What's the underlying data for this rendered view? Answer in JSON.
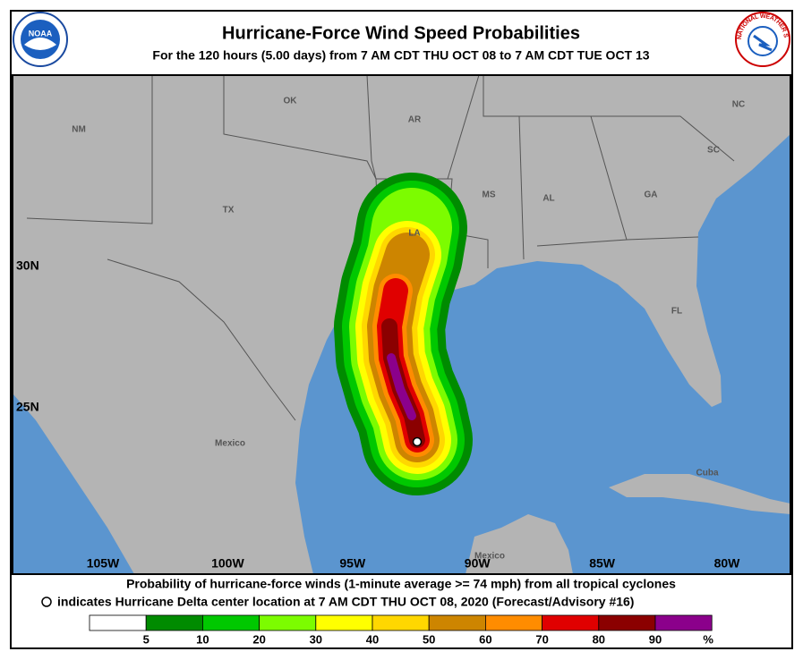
{
  "header": {
    "title": "Hurricane-Force Wind Speed Probabilities",
    "subtitle": "For the 120 hours (5.00 days) from 7 AM CDT THU OCT 08 to 7 AM CDT TUE OCT 13",
    "logo_left": "NOAA",
    "logo_right": "NATIONAL WEATHER SERVICE"
  },
  "map": {
    "labels": [
      "NM",
      "OK",
      "AR",
      "NC",
      "SC",
      "MS",
      "AL",
      "GA",
      "TX",
      "LA",
      "FL",
      "Mexico",
      "Cuba",
      "Mexico"
    ],
    "lat_labels": [
      "30N",
      "25N"
    ],
    "lon_labels": [
      "105W",
      "100W",
      "95W",
      "90W",
      "85W",
      "80W"
    ]
  },
  "footer": {
    "line1": "Probability of hurricane-force winds (1-minute average >= 74 mph) from all tropical cyclones",
    "line2": "indicates Hurricane Delta center location at 7 AM CDT THU OCT 08, 2020 (Forecast/Advisory #16)"
  },
  "legend": {
    "ticks": [
      5,
      10,
      20,
      30,
      40,
      50,
      60,
      70,
      80,
      90
    ],
    "unit": "%",
    "colors": [
      "#ffffff",
      "#008b00",
      "#00c800",
      "#7cfc00",
      "#ffff00",
      "#ffd700",
      "#cd8500",
      "#ff8c00",
      "#e00000",
      "#8b0000",
      "#8b008b"
    ]
  }
}
